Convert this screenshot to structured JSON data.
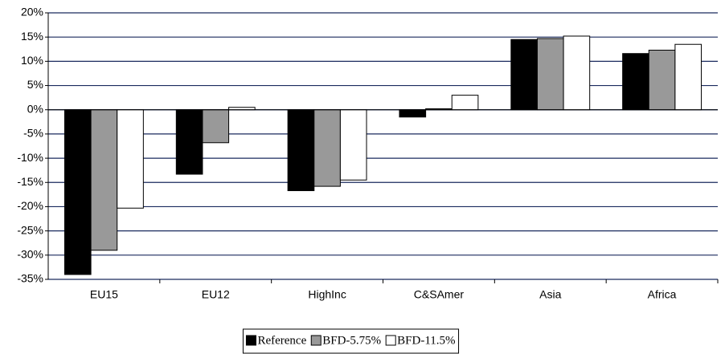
{
  "chart_data": {
    "type": "bar",
    "categories": [
      "EU15",
      "EU12",
      "HighInc",
      "C&SAmer",
      "Asia",
      "Africa"
    ],
    "series": [
      {
        "name": "Reference",
        "color": "#000000",
        "values": [
          -34,
          -13.3,
          -16.7,
          -1.5,
          14.5,
          11.6
        ]
      },
      {
        "name": "BFD-5.75%",
        "color": "#999999",
        "values": [
          -29,
          -6.8,
          -15.8,
          0.2,
          14.7,
          12.3
        ]
      },
      {
        "name": "BFD-11.5%",
        "color": "#ffffff",
        "values": [
          -20.3,
          0.5,
          -14.5,
          3.0,
          15.2,
          13.5
        ]
      }
    ],
    "ylim": [
      -35,
      20
    ],
    "yticks": [
      {
        "value": -35,
        "label": "-35%"
      },
      {
        "value": -30,
        "label": "-30%"
      },
      {
        "value": -25,
        "label": "-25%"
      },
      {
        "value": -20,
        "label": "-20%"
      },
      {
        "value": -15,
        "label": "-15%"
      },
      {
        "value": -10,
        "label": "-10%"
      },
      {
        "value": -5,
        "label": "-5%"
      },
      {
        "value": 0,
        "label": "0%"
      },
      {
        "value": 5,
        "label": "5%"
      },
      {
        "value": 10,
        "label": "10%"
      },
      {
        "value": 15,
        "label": "15%"
      },
      {
        "value": 20,
        "label": "20%"
      }
    ],
    "grid": true,
    "legend": "bottom"
  }
}
